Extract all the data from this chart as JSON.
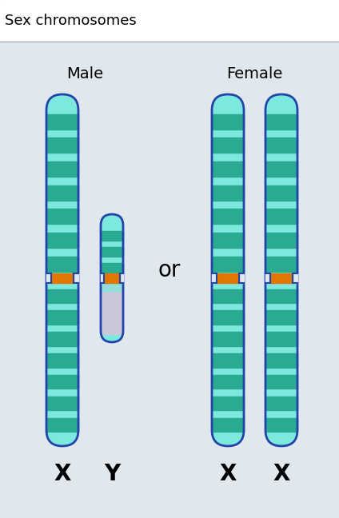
{
  "title": "Sex chromosomes",
  "background_color": "#e0e8ee",
  "title_bg": "#ffffff",
  "border_color": "#2244aa",
  "centromere_color": "#e07800",
  "light_band": "#7de8dc",
  "dark_band": "#2aaa90",
  "gray_band": "#c8c8d8",
  "male_label": "Male",
  "female_label": "Female",
  "x_label": "X",
  "y_label": "Y",
  "or_text": "or",
  "label_fontsize": 14,
  "title_fontsize": 13,
  "or_fontsize": 20,
  "letter_fontsize": 20,
  "fig_width": 4.24,
  "fig_height": 6.48,
  "dpi": 100
}
